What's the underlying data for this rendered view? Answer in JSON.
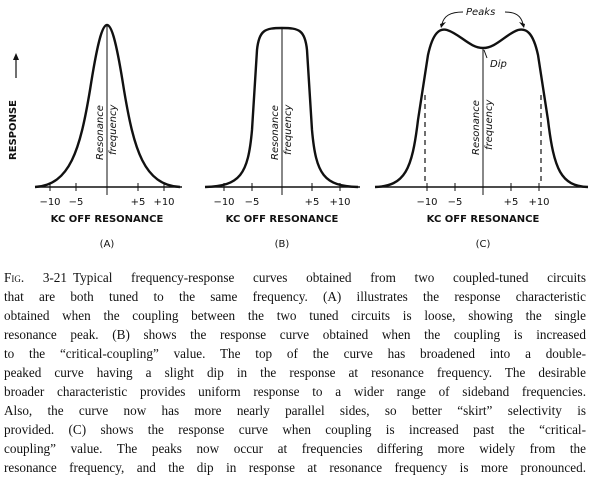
{
  "figure": {
    "y_label": "RESPONSE",
    "panels": [
      {
        "tick_labels": [
          "−10",
          "−5",
          "+5",
          "+10"
        ],
        "x_label": "KC OFF RESONANCE",
        "label": "(A)",
        "center_label": [
          "Resonance",
          "frequency"
        ]
      },
      {
        "tick_labels": [
          "−10",
          "−5",
          "+5",
          "+10"
        ],
        "x_label": "KC OFF RESONANCE",
        "label": "(B)",
        "center_label": [
          "Resonance",
          "frequency"
        ]
      },
      {
        "tick_labels": [
          "−10",
          "−5",
          "+5",
          "+10"
        ],
        "x_label": "KC OFF RESONANCE",
        "label": "(C)",
        "center_label": [
          "Resonance",
          "frequency"
        ]
      }
    ],
    "annotations": {
      "peaks": "Peaks",
      "dip": "Dip"
    }
  },
  "caption": {
    "figure_number": "Fig. 3-21",
    "lines": [
      "Typical frequency-response curves obtained from two coupled-tuned circuits",
      "that are both tuned to the same frequency. (A) illustrates the response characteristic",
      "obtained when the coupling between the two tuned circuits is loose, showing the single",
      "resonance peak. (B) shows the response curve obtained when the coupling is increased",
      "to the “critical-coupling” value. The top of the curve has broadened into a double-",
      "peaked curve having a slight dip in the response at resonance frequency. The desirable",
      "broader characteristic provides uniform response to a wider range of sideband frequencies.",
      "Also, the curve now has more nearly parallel sides, so better “skirt” selectivity is",
      "provided. (C) shows the response curve when coupling is increased past the “critical-",
      "coupling” value. The peaks now occur at frequencies differing more widely from the",
      "resonance frequency, and the dip in response at resonance frequency is more pronounced."
    ]
  }
}
